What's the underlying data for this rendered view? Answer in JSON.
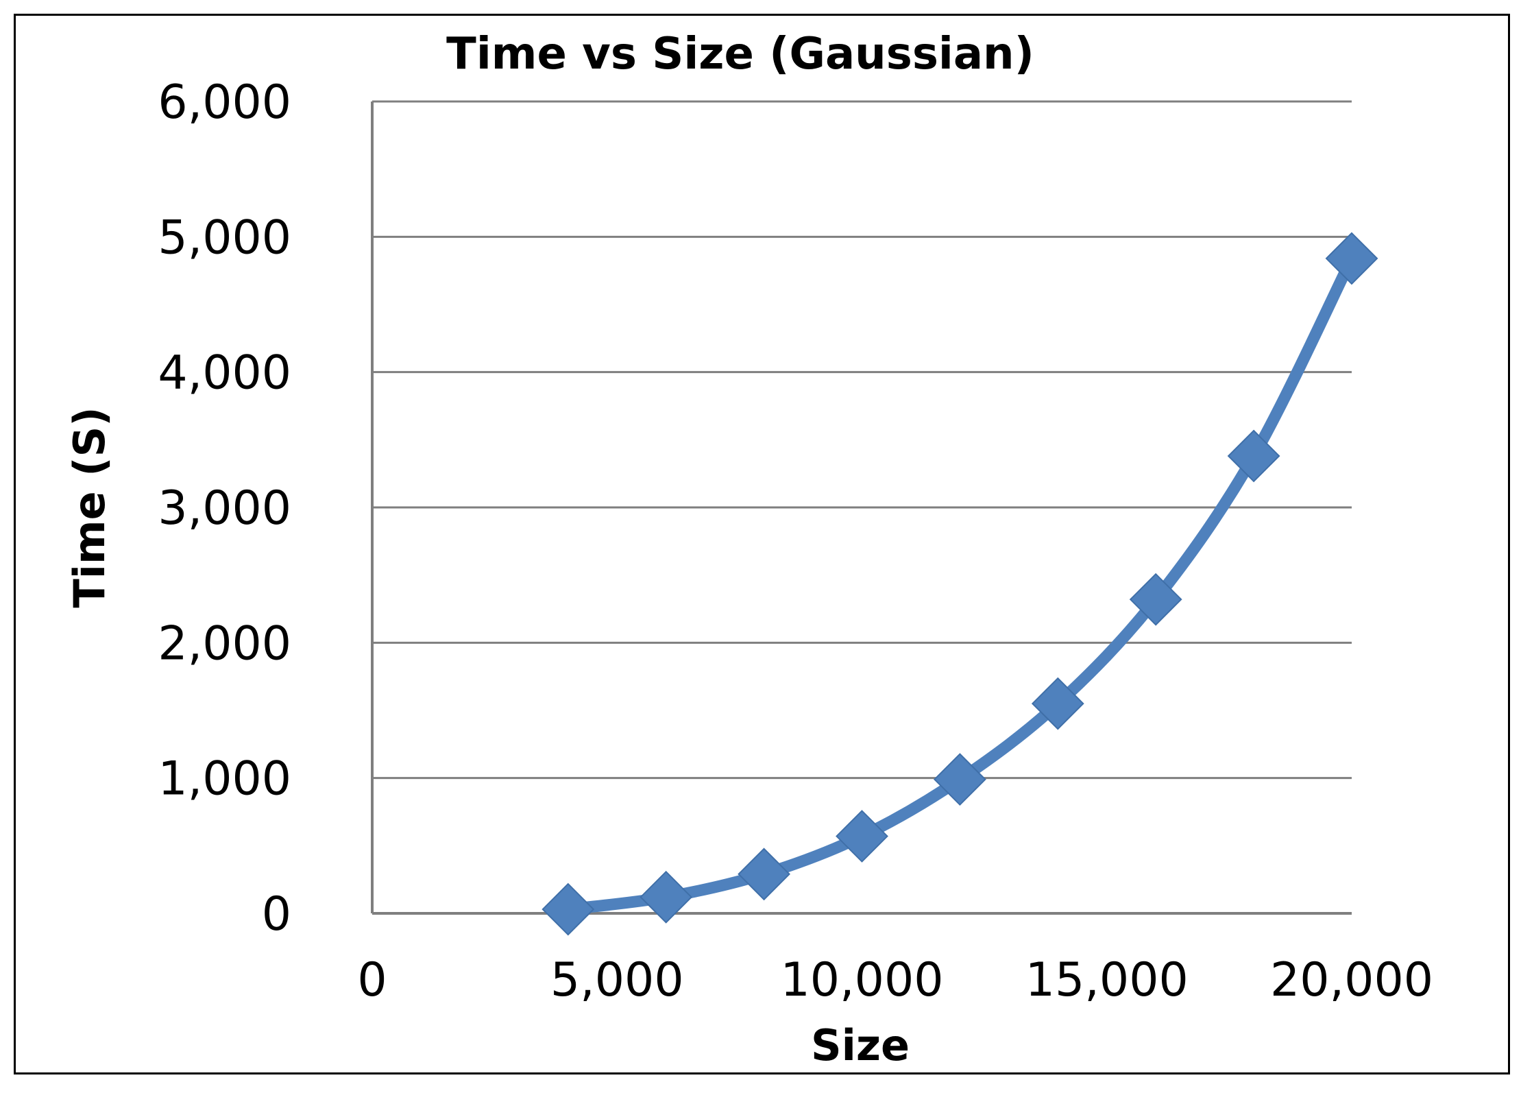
{
  "chart_data": {
    "type": "line",
    "title": "Time vs Size (Gaussian)",
    "xlabel": "Size",
    "ylabel": "Time (S)",
    "xlim": [
      0,
      20000
    ],
    "ylim": [
      0,
      6000
    ],
    "x_ticks": [
      "0",
      "5,000",
      "10,000",
      "15,000",
      "20,000"
    ],
    "y_ticks": [
      "0",
      "1,000",
      "2,000",
      "3,000",
      "4,000",
      "5,000",
      "6,000"
    ],
    "grid": "horizontal",
    "legend": "none",
    "series": [
      {
        "color": "#4f81bd",
        "marker": "diamond",
        "x": [
          4000,
          6000,
          8000,
          10000,
          12000,
          14000,
          16000,
          18000,
          20000
        ],
        "y": [
          30,
          120,
          290,
          570,
          990,
          1550,
          2320,
          3380,
          4840
        ]
      }
    ],
    "colors": {
      "grid": "#7f7f7f",
      "axis": "#7f7f7f",
      "series": "#4f81bd",
      "frame": "#000000"
    }
  }
}
